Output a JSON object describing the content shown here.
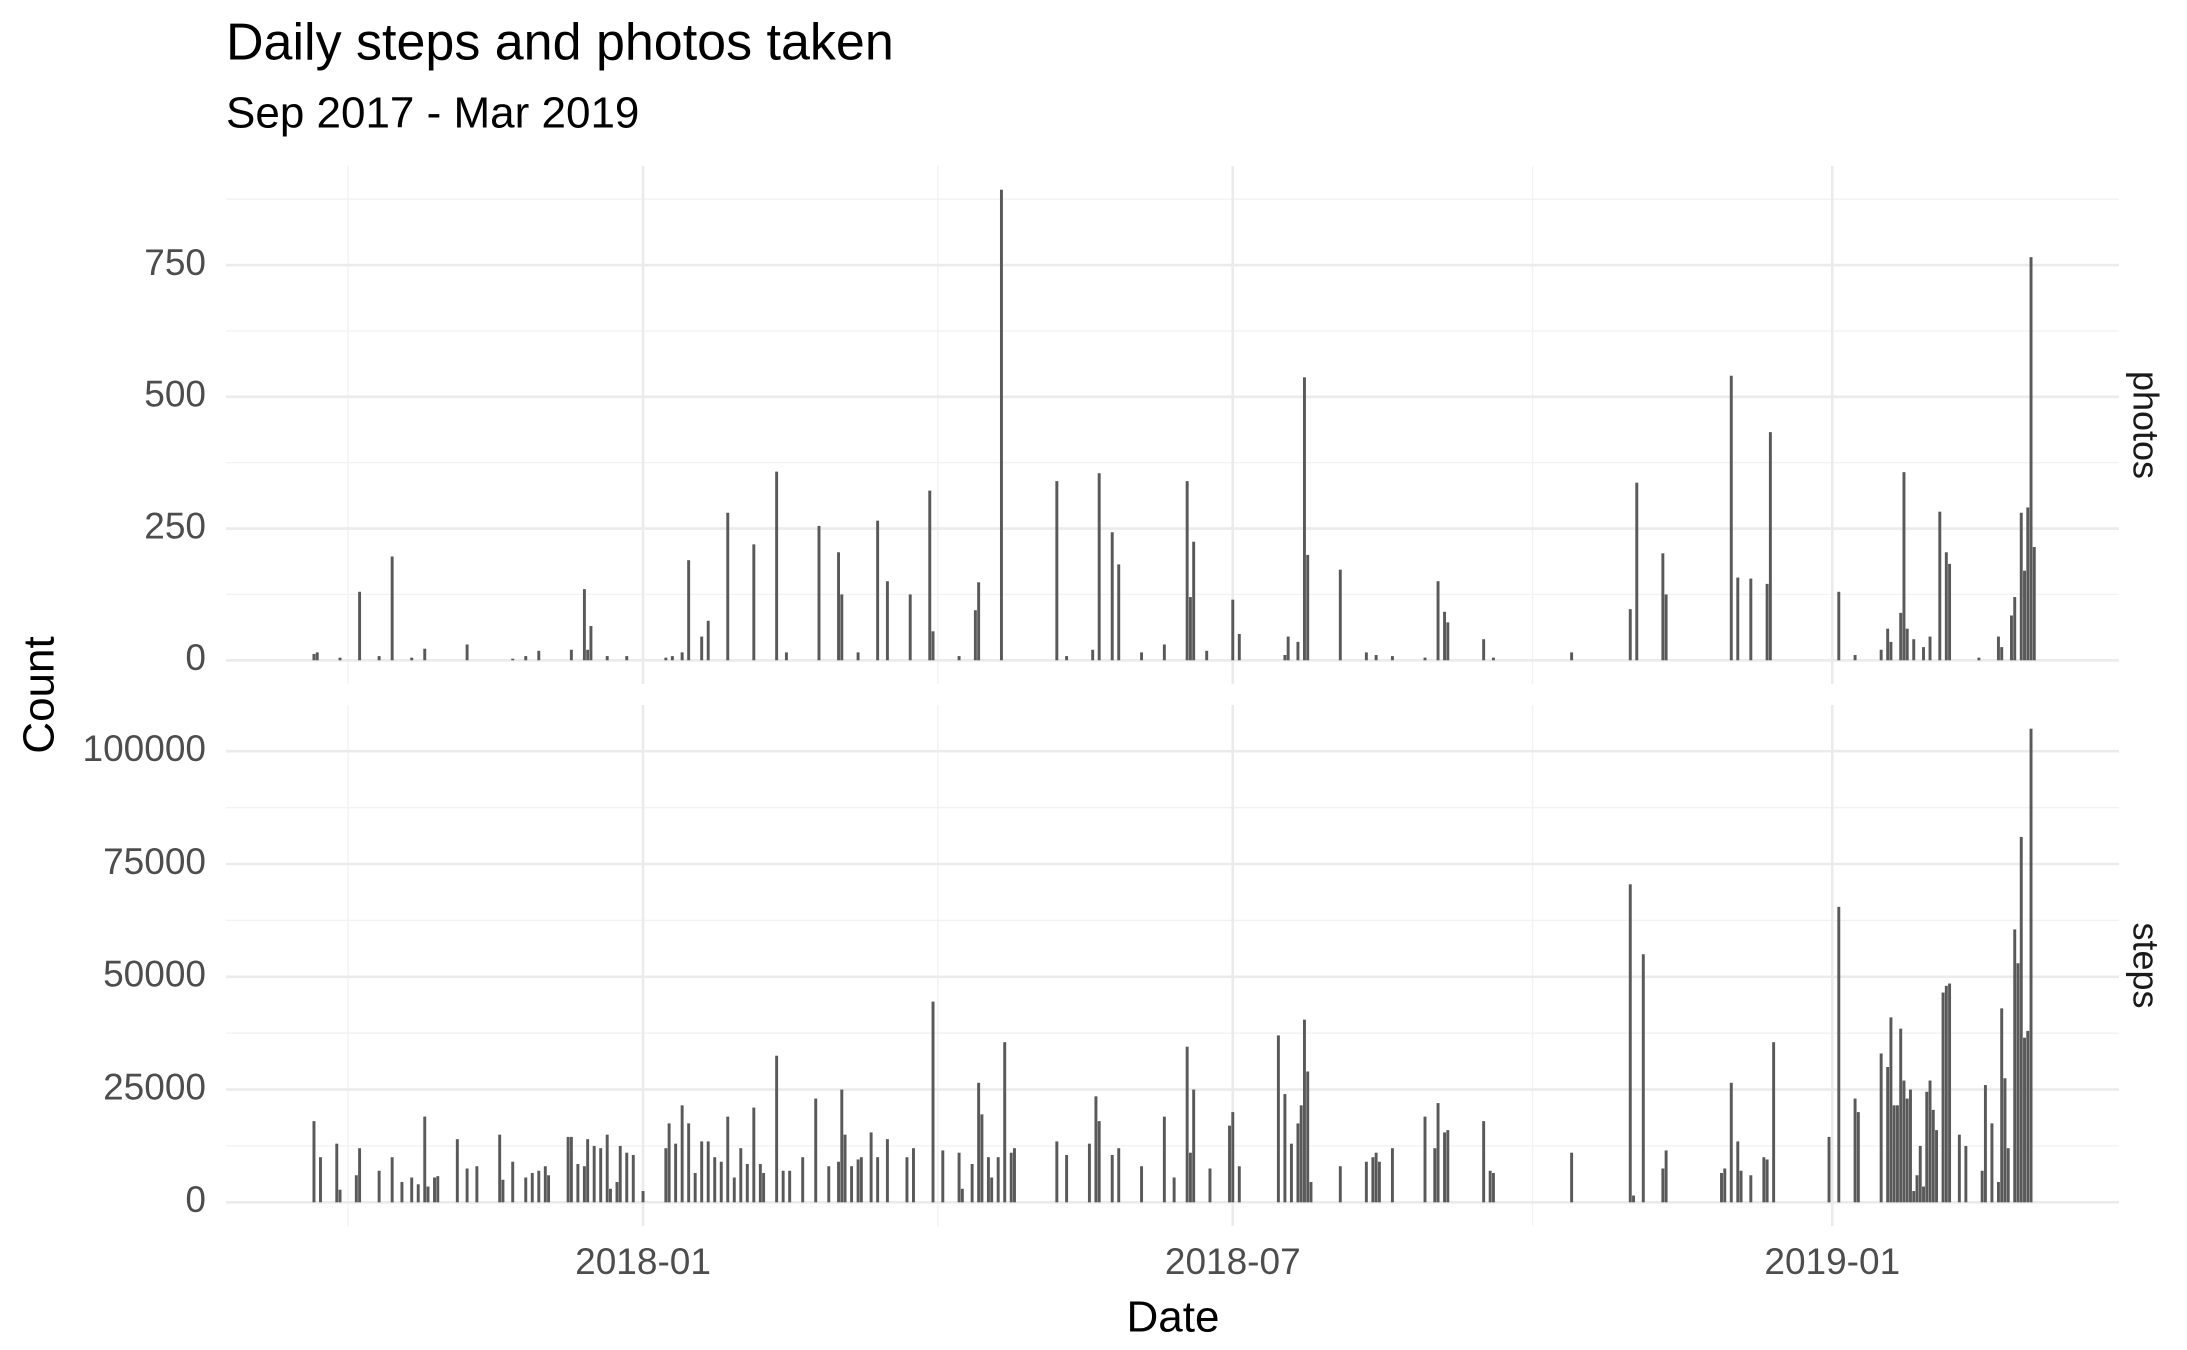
{
  "chart_data": {
    "type": "bar",
    "title": "Daily steps and photos taken",
    "subtitle": "Sep 2017 - Mar 2019",
    "x_label": "Date",
    "y_label": "Count",
    "color": "#595959",
    "grid": true,
    "xlim": [
      17404,
      17985
    ],
    "xticks": [
      {
        "value": 17532,
        "label": "2018-01"
      },
      {
        "value": 17713,
        "label": "2018-07"
      },
      {
        "value": 17897,
        "label": "2019-01"
      }
    ],
    "panels": [
      {
        "name": "photos",
        "ylim": [
          -45,
          938
        ],
        "yticks": [
          0,
          250,
          500,
          750
        ],
        "x": [
          17431,
          17432,
          17439,
          17445,
          17451,
          17455,
          17461,
          17465,
          17478,
          17492,
          17496,
          17500,
          17510,
          17514,
          17515,
          17516,
          17521,
          17527,
          17539,
          17541,
          17544,
          17546,
          17550,
          17552,
          17558,
          17566,
          17573,
          17576,
          17586,
          17592,
          17593,
          17598,
          17604,
          17607,
          17614,
          17620,
          17621,
          17629,
          17634,
          17635,
          17642,
          17659,
          17662,
          17670,
          17672,
          17676,
          17678,
          17685,
          17692,
          17699,
          17700,
          17701,
          17705,
          17713,
          17715,
          17729,
          17730,
          17733,
          17735,
          17736,
          17746,
          17754,
          17757,
          17762,
          17772,
          17776,
          17778,
          17779,
          17790,
          17793,
          17817,
          17835,
          17837,
          17845,
          17846,
          17866,
          17868,
          17872,
          17877,
          17878,
          17899,
          17904,
          17912,
          17914,
          17915,
          17918,
          17919,
          17920,
          17922,
          17925,
          17927,
          17930,
          17932,
          17933,
          17942,
          17948,
          17949,
          17952,
          17953,
          17955,
          17956,
          17957,
          17958,
          17959
        ],
        "values": [
          12,
          15,
          5,
          130,
          8,
          197,
          5,
          22,
          30,
          3,
          8,
          18,
          20,
          135,
          20,
          65,
          8,
          8,
          5,
          8,
          15,
          190,
          45,
          75,
          280,
          220,
          358,
          15,
          255,
          205,
          125,
          15,
          265,
          150,
          125,
          322,
          55,
          8,
          95,
          148,
          893,
          340,
          8,
          20,
          355,
          243,
          182,
          15,
          30,
          340,
          120,
          225,
          18,
          115,
          50,
          10,
          45,
          35,
          537,
          200,
          172,
          15,
          10,
          8,
          5,
          150,
          92,
          72,
          40,
          5,
          15,
          97,
          337,
          203,
          125,
          540,
          157,
          155,
          145,
          433,
          130,
          10,
          20,
          60,
          35,
          90,
          357,
          60,
          40,
          25,
          45,
          282,
          205,
          183,
          5,
          45,
          25,
          85,
          120,
          280,
          170,
          290,
          765,
          215
        ]
      },
      {
        "name": "steps",
        "ylim": [
          -5250,
          110250
        ],
        "yticks": [
          0,
          25000,
          50000,
          75000,
          100000
        ],
        "x": [
          17431,
          17433,
          17438,
          17439,
          17444,
          17445,
          17451,
          17455,
          17458,
          17461,
          17463,
          17465,
          17466,
          17468,
          17469,
          17475,
          17478,
          17481,
          17488,
          17489,
          17492,
          17496,
          17498,
          17500,
          17502,
          17503,
          17509,
          17510,
          17512,
          17514,
          17515,
          17517,
          17519,
          17521,
          17522,
          17524,
          17525,
          17527,
          17529,
          17532,
          17539,
          17540,
          17542,
          17544,
          17546,
          17548,
          17550,
          17552,
          17554,
          17556,
          17558,
          17560,
          17562,
          17564,
          17566,
          17568,
          17569,
          17573,
          17575,
          17577,
          17581,
          17585,
          17589,
          17592,
          17593,
          17594,
          17596,
          17598,
          17599,
          17602,
          17604,
          17607,
          17613,
          17615,
          17621,
          17624,
          17629,
          17630,
          17633,
          17635,
          17636,
          17638,
          17639,
          17641,
          17643,
          17645,
          17646,
          17659,
          17662,
          17669,
          17671,
          17672,
          17676,
          17678,
          17685,
          17692,
          17695,
          17699,
          17700,
          17701,
          17706,
          17712,
          17713,
          17715,
          17727,
          17729,
          17731,
          17733,
          17734,
          17735,
          17736,
          17737,
          17746,
          17754,
          17756,
          17757,
          17758,
          17762,
          17772,
          17775,
          17776,
          17778,
          17779,
          17790,
          17792,
          17793,
          17817,
          17835,
          17836,
          17839,
          17845,
          17846,
          17863,
          17864,
          17866,
          17868,
          17869,
          17872,
          17876,
          17877,
          17879,
          17896,
          17899,
          17904,
          17905,
          17912,
          17914,
          17915,
          17916,
          17917,
          17918,
          17919,
          17920,
          17921,
          17922,
          17923,
          17924,
          17925,
          17926,
          17927,
          17928,
          17929,
          17931,
          17932,
          17933,
          17936,
          17938,
          17943,
          17944,
          17946,
          17948,
          17949,
          17950,
          17951,
          17953,
          17954,
          17955,
          17956,
          17957,
          17958
        ],
        "values": [
          18000,
          10000,
          13000,
          2800,
          6000,
          12000,
          7000,
          10000,
          4500,
          5500,
          4000,
          19000,
          3500,
          5500,
          5800,
          14000,
          7500,
          8000,
          15000,
          5000,
          9000,
          5500,
          6500,
          7000,
          8000,
          6000,
          14500,
          14500,
          8500,
          8000,
          14000,
          12500,
          12000,
          15000,
          3000,
          4500,
          12500,
          11000,
          10500,
          2500,
          12000,
          17500,
          13000,
          21500,
          17500,
          6500,
          13500,
          13500,
          10000,
          9000,
          19000,
          5500,
          12000,
          8500,
          21000,
          8500,
          6500,
          32500,
          7000,
          7000,
          10000,
          23000,
          8000,
          9000,
          25000,
          15000,
          8000,
          9500,
          10000,
          15500,
          10000,
          14000,
          10000,
          12000,
          44500,
          11500,
          11000,
          3000,
          8500,
          26500,
          19500,
          10000,
          5500,
          10000,
          35500,
          11000,
          12000,
          13500,
          10500,
          13000,
          23500,
          18000,
          10500,
          12000,
          8000,
          19000,
          5500,
          34500,
          11000,
          25000,
          7500,
          17000,
          20000,
          8000,
          37000,
          24000,
          13000,
          17500,
          21500,
          40500,
          29000,
          4500,
          8000,
          9000,
          10000,
          11000,
          9000,
          12000,
          19000,
          12000,
          22000,
          15500,
          16000,
          18000,
          7000,
          6500,
          11000,
          70500,
          1500,
          55000,
          7500,
          11500,
          6500,
          7500,
          26500,
          13500,
          7000,
          6000,
          10000,
          9500,
          35500,
          14500,
          65500,
          23000,
          20000,
          33000,
          30000,
          41000,
          21500,
          21500,
          38500,
          27000,
          23000,
          25000,
          2500,
          6000,
          12500,
          3500,
          24500,
          27000,
          20500,
          16000,
          46500,
          48000,
          48500,
          15000,
          12500,
          7000,
          26000,
          17500,
          4500,
          43000,
          27500,
          12000,
          60500,
          53000,
          81000,
          36500,
          38000,
          105000
        ]
      }
    ]
  }
}
